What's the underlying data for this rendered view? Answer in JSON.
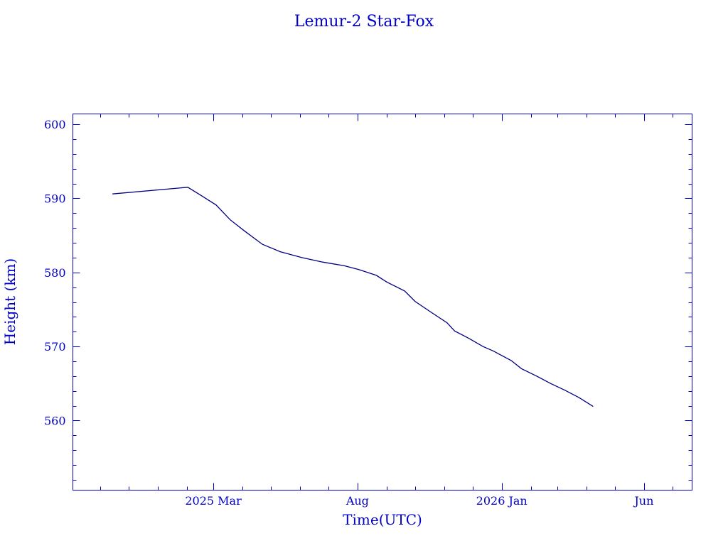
{
  "chart_data": {
    "type": "line",
    "title": "Lemur-2 Star-Fox",
    "xlabel": "Time(UTC)",
    "ylabel": "Height (km)",
    "x_unit": "days since 2025-01-01",
    "xlim": [
      -90,
      567
    ],
    "ylim": [
      550.6,
      601.4
    ],
    "yticks": [
      560,
      570,
      580,
      590,
      600
    ],
    "xticks": [
      {
        "day": 59,
        "label": "2025 Mar"
      },
      {
        "day": 212,
        "label": "Aug"
      },
      {
        "day": 365,
        "label": "2026 Jan"
      },
      {
        "day": 516,
        "label": "Jun"
      }
    ],
    "grid": false,
    "series": [
      {
        "name": "Height",
        "color": "#000080",
        "x": [
          -48,
          32,
          46,
          62,
          77,
          92,
          111,
          130,
          153,
          175,
          198,
          213,
          232,
          243,
          262,
          273,
          288,
          307,
          315,
          330,
          345,
          356,
          375,
          386,
          402,
          417,
          432,
          447,
          462
        ],
        "y": [
          590.6,
          591.5,
          590.4,
          589.1,
          587.1,
          585.6,
          583.8,
          582.8,
          582.0,
          581.4,
          580.9,
          580.4,
          579.6,
          578.7,
          577.5,
          576.1,
          574.8,
          573.2,
          572.1,
          571.1,
          570.0,
          569.4,
          568.1,
          567.0,
          566.0,
          565.0,
          564.1,
          563.1,
          561.9
        ]
      }
    ],
    "colors": {
      "text": "#0000c8",
      "axes": "#0000c8",
      "line": "#000080"
    }
  }
}
